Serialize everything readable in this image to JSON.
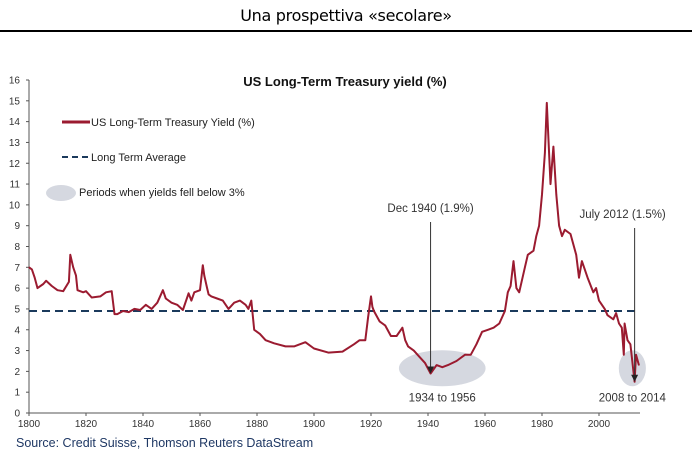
{
  "slide": {
    "title": "Una prospettiva  «secolare»"
  },
  "source": "Source: Credit Suisse, Thomson Reuters DataStream",
  "colors": {
    "yield_line": "#9b1b30",
    "average_line": "#1b3a5c",
    "period_shade": "#d5d8e0",
    "axis": "#555555"
  },
  "chart_data": {
    "type": "line",
    "title": "US Long-Term Treasury yield (%)",
    "xlabel": "",
    "ylabel": "",
    "xlim": [
      1800,
      2015
    ],
    "ylim": [
      0,
      16
    ],
    "x_ticks": [
      "1800",
      "1820",
      "1840",
      "1860",
      "1880",
      "1900",
      "1920",
      "1940",
      "1960",
      "1980",
      "2000"
    ],
    "y_ticks": [
      "0",
      "1",
      "2",
      "3",
      "4",
      "5",
      "6",
      "7",
      "8",
      "9",
      "10",
      "11",
      "12",
      "13",
      "14",
      "15",
      "16"
    ],
    "legend": {
      "position": "top-left",
      "entries": [
        {
          "label": "US Long-Term Treasury Yield (%)",
          "kind": "line"
        },
        {
          "label": "Long Term Average",
          "kind": "dashed"
        },
        {
          "label": "Periods when yields fell below 3%",
          "kind": "ellipse"
        }
      ]
    },
    "series": [
      {
        "name": "US Long-Term Treasury Yield (%)",
        "x": [
          1800,
          1801,
          1802,
          1803,
          1805,
          1806,
          1808,
          1810,
          1812,
          1814,
          1814.5,
          1815.5,
          1816.5,
          1817,
          1819,
          1820,
          1822,
          1825,
          1827,
          1829,
          1830,
          1831,
          1833,
          1835,
          1837,
          1839,
          1841,
          1843,
          1845,
          1847,
          1848,
          1850,
          1852,
          1854,
          1856,
          1857,
          1858,
          1860,
          1861,
          1861.5,
          1862.5,
          1863,
          1864,
          1866,
          1868,
          1870,
          1872,
          1874,
          1876,
          1877,
          1878,
          1879,
          1881,
          1883,
          1886,
          1890,
          1893,
          1897,
          1900,
          1905,
          1910,
          1914,
          1916,
          1918,
          1919,
          1920,
          1920.5,
          1921,
          1923,
          1925,
          1927,
          1929,
          1931,
          1932,
          1933,
          1935,
          1937,
          1939,
          1940.9,
          1943,
          1945,
          1947,
          1950,
          1953,
          1955,
          1957,
          1959,
          1961,
          1963,
          1965,
          1967,
          1968,
          1969,
          1970,
          1971,
          1972,
          1974,
          1975,
          1977,
          1978,
          1979,
          1980,
          1981,
          1981.7,
          1982.3,
          1983,
          1984,
          1985,
          1986,
          1987,
          1988,
          1990,
          1992,
          1993,
          1994,
          1996,
          1998,
          1999,
          2000,
          2002,
          2003,
          2005,
          2006,
          2007,
          2008,
          2008.7,
          2009,
          2010,
          2011,
          2012.5,
          2013,
          2014
        ],
        "values": [
          7.0,
          6.9,
          6.5,
          6.0,
          6.2,
          6.35,
          6.1,
          5.9,
          5.85,
          6.3,
          7.6,
          7.0,
          6.6,
          5.9,
          5.8,
          5.85,
          5.55,
          5.6,
          5.8,
          5.85,
          4.75,
          4.75,
          4.9,
          4.85,
          5.0,
          4.95,
          5.2,
          5.0,
          5.3,
          5.9,
          5.5,
          5.3,
          5.2,
          4.95,
          5.75,
          5.4,
          5.8,
          5.9,
          7.1,
          6.6,
          6.0,
          5.7,
          5.6,
          5.5,
          5.4,
          5.0,
          5.3,
          5.4,
          5.2,
          5.0,
          5.4,
          4.0,
          3.8,
          3.5,
          3.35,
          3.2,
          3.2,
          3.4,
          3.1,
          2.9,
          2.95,
          3.3,
          3.5,
          3.5,
          4.6,
          5.6,
          5.1,
          4.9,
          4.4,
          4.2,
          3.7,
          3.7,
          4.1,
          3.5,
          3.2,
          3.0,
          2.7,
          2.4,
          1.9,
          2.3,
          2.2,
          2.3,
          2.5,
          2.8,
          2.8,
          3.3,
          3.9,
          4.0,
          4.1,
          4.3,
          4.9,
          5.8,
          6.1,
          7.3,
          6.0,
          5.8,
          7.0,
          7.6,
          7.8,
          8.5,
          9.0,
          10.5,
          12.5,
          14.9,
          13.0,
          11.0,
          12.8,
          10.5,
          9.0,
          8.5,
          8.8,
          8.6,
          7.6,
          6.5,
          7.3,
          6.5,
          5.8,
          6.0,
          5.4,
          5.0,
          4.7,
          4.5,
          4.8,
          4.3,
          4.1,
          2.8,
          4.3,
          3.5,
          3.3,
          1.5,
          2.8,
          2.3
        ]
      },
      {
        "name": "Long Term Average",
        "style": "dashed",
        "x": [
          1800,
          2013
        ],
        "values": [
          4.9,
          4.9
        ]
      }
    ],
    "shaded_periods": [
      {
        "label": "1934 to 1956",
        "start": 1934,
        "end": 1956
      },
      {
        "label": "2008 to 2014",
        "start": 2008,
        "end": 2014
      }
    ],
    "annotations": [
      {
        "text": "Dec 1940 (1.9%)",
        "x": 1940.9,
        "y": 1.9
      },
      {
        "text": "July 2012 (1.5%)",
        "x": 2012.5,
        "y": 1.5
      }
    ]
  }
}
